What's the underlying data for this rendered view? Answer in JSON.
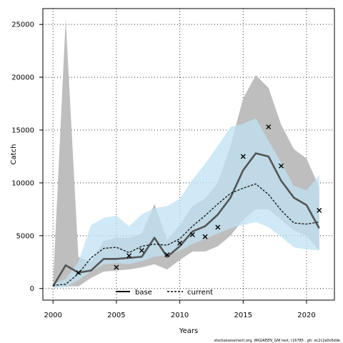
{
  "chart_data": {
    "type": "line",
    "xlabel": "Years",
    "ylabel": "Catch",
    "xlim": [
      1999.2,
      2022.2
    ],
    "ylim": [
      -1100,
      26500
    ],
    "grid": true,
    "legend_position": "bottom-center",
    "xticks": [
      2000,
      2005,
      2010,
      2015,
      2020
    ],
    "yticks": [
      0,
      5000,
      10000,
      15000,
      20000,
      25000
    ],
    "observed": {
      "marker": "x",
      "points": [
        {
          "x": 2002,
          "y": 1500
        },
        {
          "x": 2005,
          "y": 2000
        },
        {
          "x": 2006,
          "y": 3100
        },
        {
          "x": 2007,
          "y": 3600
        },
        {
          "x": 2009,
          "y": 3200
        },
        {
          "x": 2010,
          "y": 4300
        },
        {
          "x": 2011,
          "y": 5100
        },
        {
          "x": 2012,
          "y": 4900
        },
        {
          "x": 2013,
          "y": 5800
        },
        {
          "x": 2015,
          "y": 12500
        },
        {
          "x": 2017,
          "y": 15300
        },
        {
          "x": 2018,
          "y": 11600
        },
        {
          "x": 2021,
          "y": 7400
        }
      ]
    },
    "series": [
      {
        "name": "base",
        "color": "#555555",
        "band_color": "#bebebe",
        "line_style": "solid",
        "x": [
          2000,
          2001,
          2002,
          2003,
          2004,
          2005,
          2006,
          2007,
          2008,
          2009,
          2010,
          2011,
          2012,
          2013,
          2014,
          2015,
          2016,
          2017,
          2018,
          2019,
          2020,
          2021
        ],
        "median": [
          200,
          2200,
          1500,
          1700,
          2800,
          2800,
          2900,
          3000,
          4800,
          3000,
          4000,
          5400,
          5900,
          7000,
          8600,
          11200,
          12800,
          12500,
          10200,
          8600,
          7900,
          5700
        ],
        "lower": [
          100,
          200,
          200,
          1000,
          1600,
          1700,
          1800,
          2000,
          2300,
          1800,
          2700,
          3500,
          3500,
          4000,
          5000,
          6500,
          7500,
          7500,
          6500,
          5500,
          5000,
          3600
        ],
        "upper": [
          400,
          25500,
          3000,
          2500,
          4500,
          4800,
          4800,
          5200,
          8000,
          4600,
          6000,
          7800,
          8500,
          10000,
          13500,
          18000,
          20200,
          19000,
          15500,
          13200,
          12300,
          9600
        ]
      },
      {
        "name": "current",
        "color": "#1a1a1a",
        "band_color": "#bfe2f3",
        "line_style": "dashed",
        "x": [
          2000,
          2001,
          2002,
          2003,
          2004,
          2005,
          2006,
          2007,
          2008,
          2009,
          2010,
          2011,
          2012,
          2013,
          2014,
          2015,
          2016,
          2017,
          2018,
          2019,
          2020,
          2021
        ],
        "median": [
          300,
          400,
          1400,
          2900,
          3800,
          3900,
          3400,
          4000,
          4200,
          4100,
          4700,
          5900,
          6900,
          8000,
          9000,
          9500,
          9900,
          8900,
          7400,
          6200,
          6100,
          6300
        ],
        "lower": [
          100,
          100,
          800,
          1600,
          2300,
          2400,
          2300,
          2600,
          3000,
          3200,
          3600,
          4200,
          4700,
          5200,
          5700,
          6000,
          6300,
          5800,
          4900,
          3900,
          3700,
          3600
        ],
        "upper": [
          500,
          900,
          2500,
          6000,
          6700,
          6900,
          5900,
          7000,
          7600,
          7800,
          8500,
          10300,
          11800,
          13500,
          15300,
          15600,
          16100,
          14000,
          11900,
          9700,
          9300,
          10700
        ]
      }
    ]
  },
  "footer_text": "stockassessment.org, WKGREEN_GNI test, r16785 , git: ec2c2a0c6dde"
}
